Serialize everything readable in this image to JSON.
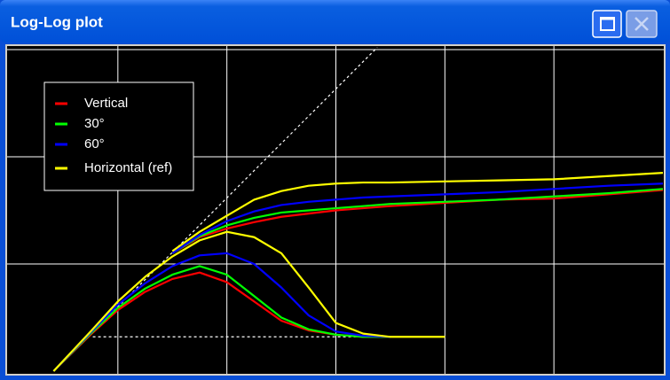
{
  "window": {
    "title": "Log-Log plot"
  },
  "chart_data": {
    "type": "line",
    "grid": true,
    "xlim": [
      0,
      6
    ],
    "ylim": [
      0,
      3
    ],
    "xticks": [
      1,
      2,
      3,
      4,
      5
    ],
    "yticks": [
      1,
      2,
      3
    ],
    "legend": "top-left",
    "x": [
      0.41,
      0.75,
      1.0,
      1.25,
      1.5,
      1.75,
      2.0,
      2.25,
      2.5,
      2.75,
      3.0,
      3.25,
      3.5,
      4.0,
      4.5,
      5.0,
      5.5,
      6.0
    ],
    "series": [
      {
        "name": "Vertical",
        "color": "#ff0000",
        "values": [
          0,
          0.34,
          0.57,
          0.74,
          0.86,
          0.92,
          0.83,
          0.65,
          0.47,
          0.38,
          0.34,
          0.32,
          0.32,
          null,
          null,
          null,
          null,
          null
        ],
        "upper_values": [
          null,
          null,
          null,
          null,
          1.1,
          1.25,
          1.33,
          1.39,
          1.44,
          1.47,
          1.5,
          1.52,
          1.54,
          1.57,
          1.6,
          1.61,
          1.65,
          1.69
        ]
      },
      {
        "name": "30°",
        "color": "#00ff00",
        "values": [
          0,
          0.35,
          0.59,
          0.77,
          0.9,
          0.98,
          0.9,
          0.7,
          0.5,
          0.39,
          0.34,
          0.32,
          0.32,
          null,
          null,
          null,
          null,
          null
        ],
        "upper_values": [
          null,
          null,
          null,
          null,
          1.1,
          1.26,
          1.36,
          1.43,
          1.48,
          1.5,
          1.52,
          1.54,
          1.56,
          1.58,
          1.6,
          1.63,
          1.66,
          1.7
        ]
      },
      {
        "name": "60°",
        "color": "#0000ff",
        "values": [
          0,
          0.36,
          0.62,
          0.82,
          0.98,
          1.08,
          1.1,
          1.0,
          0.78,
          0.52,
          0.37,
          0.33,
          0.32,
          null,
          null,
          null,
          null,
          null
        ],
        "upper_values": [
          null,
          null,
          null,
          null,
          1.1,
          1.27,
          1.4,
          1.49,
          1.55,
          1.58,
          1.6,
          1.62,
          1.63,
          1.65,
          1.67,
          1.7,
          1.73,
          1.75
        ]
      },
      {
        "name": "Horizontal (ref)",
        "color": "#ffff00",
        "values": [
          0,
          0.37,
          0.65,
          0.88,
          1.07,
          1.22,
          1.3,
          1.25,
          1.1,
          0.78,
          0.45,
          0.35,
          0.32,
          0.32,
          null,
          null,
          null,
          null
        ],
        "upper_values": [
          null,
          null,
          null,
          null,
          1.12,
          1.3,
          1.45,
          1.6,
          1.68,
          1.73,
          1.75,
          1.76,
          1.76,
          1.77,
          1.78,
          1.79,
          1.82,
          1.85
        ]
      }
    ],
    "reference_lines": [
      {
        "x": [
          0.41,
          3.38
        ],
        "values": [
          0,
          3.02
        ]
      },
      {
        "x": [
          0.77,
          3.34
        ],
        "values": [
          0.32,
          0.32
        ]
      }
    ]
  }
}
